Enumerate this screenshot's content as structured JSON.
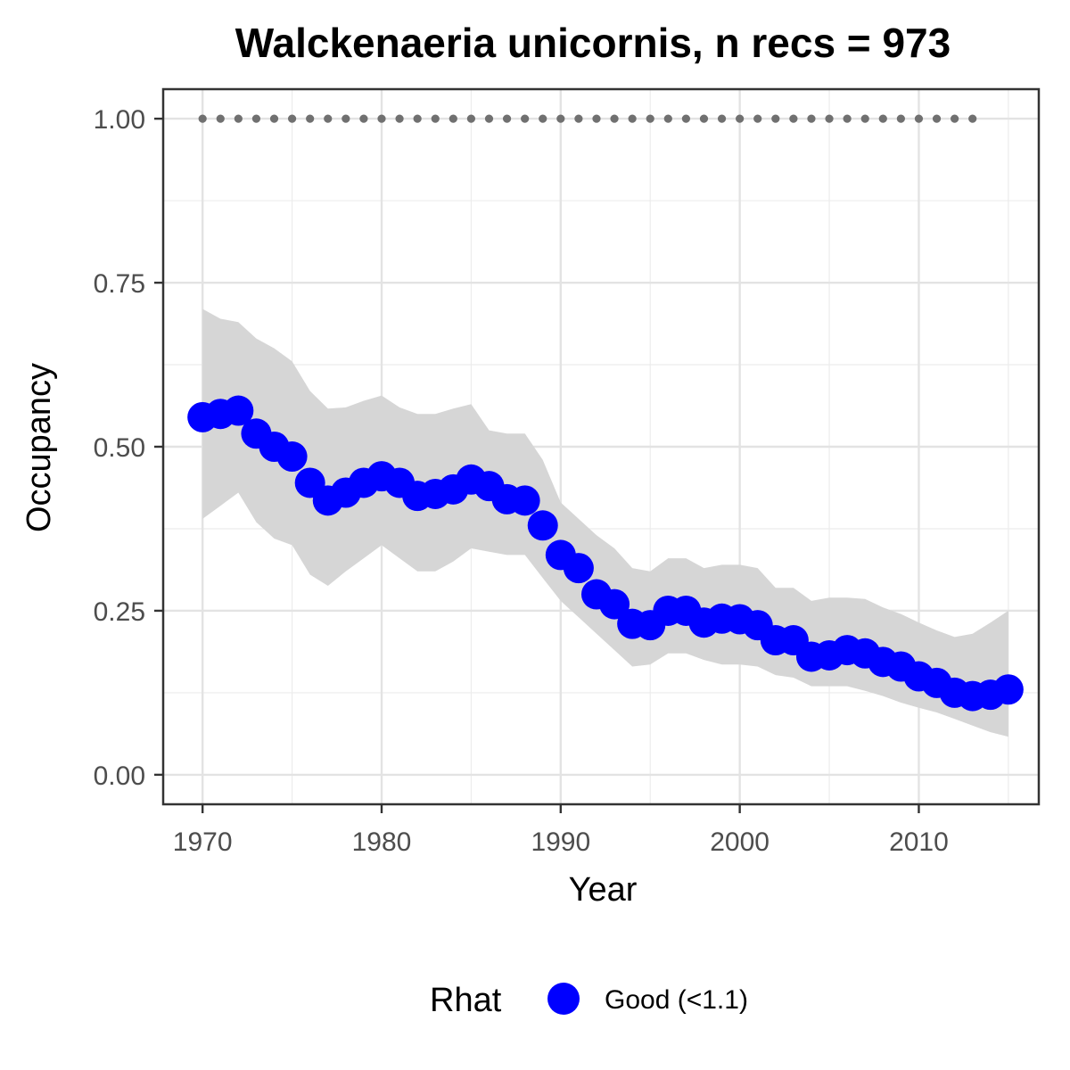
{
  "chart_data": {
    "type": "line",
    "title": "Walckenaeria unicornis, n recs = 973",
    "xlabel": "Year",
    "ylabel": "Occupancy",
    "xlim": [
      1967.8,
      2016.7
    ],
    "ylim": [
      -0.045,
      1.045
    ],
    "x_ticks": [
      1970,
      1980,
      1990,
      2000,
      2010
    ],
    "x_tick_labels": [
      "1970",
      "1980",
      "1990",
      "2000",
      "2010"
    ],
    "y_ticks": [
      0,
      0.25,
      0.5,
      0.75,
      1.0
    ],
    "y_tick_labels": [
      "0.00",
      "0.25",
      "0.50",
      "0.75",
      "1.00"
    ],
    "grid": true,
    "x": [
      1970,
      1971,
      1972,
      1973,
      1974,
      1975,
      1976,
      1977,
      1978,
      1979,
      1980,
      1981,
      1982,
      1983,
      1984,
      1985,
      1986,
      1987,
      1988,
      1989,
      1990,
      1991,
      1992,
      1993,
      1994,
      1995,
      1996,
      1997,
      1998,
      1999,
      2000,
      2001,
      2002,
      2003,
      2004,
      2005,
      2006,
      2007,
      2008,
      2009,
      2010,
      2011,
      2012,
      2013,
      2014,
      2015
    ],
    "series": [
      {
        "name": "Good (<1.1)",
        "color": "#0000ff",
        "values": [
          0.545,
          0.55,
          0.555,
          0.52,
          0.5,
          0.485,
          0.445,
          0.418,
          0.43,
          0.445,
          0.455,
          0.445,
          0.425,
          0.428,
          0.435,
          0.45,
          0.44,
          0.42,
          0.418,
          0.38,
          0.335,
          0.315,
          0.275,
          0.26,
          0.23,
          0.228,
          0.25,
          0.25,
          0.232,
          0.238,
          0.237,
          0.228,
          0.205,
          0.205,
          0.18,
          0.182,
          0.19,
          0.185,
          0.172,
          0.165,
          0.15,
          0.14,
          0.125,
          0.12,
          0.122,
          0.13
        ]
      }
    ],
    "ribbon": {
      "color": "#d6d6d6",
      "lower": [
        0.39,
        0.41,
        0.43,
        0.385,
        0.36,
        0.35,
        0.305,
        0.288,
        0.31,
        0.33,
        0.35,
        0.33,
        0.31,
        0.31,
        0.325,
        0.345,
        0.34,
        0.335,
        0.335,
        0.3,
        0.265,
        0.24,
        0.215,
        0.19,
        0.165,
        0.168,
        0.185,
        0.185,
        0.175,
        0.168,
        0.168,
        0.165,
        0.152,
        0.148,
        0.135,
        0.135,
        0.135,
        0.128,
        0.12,
        0.11,
        0.102,
        0.095,
        0.085,
        0.075,
        0.065,
        0.058
      ],
      "upper": [
        0.71,
        0.695,
        0.69,
        0.665,
        0.65,
        0.63,
        0.585,
        0.558,
        0.56,
        0.57,
        0.578,
        0.56,
        0.55,
        0.55,
        0.558,
        0.565,
        0.525,
        0.52,
        0.52,
        0.48,
        0.415,
        0.39,
        0.365,
        0.345,
        0.315,
        0.31,
        0.33,
        0.33,
        0.315,
        0.32,
        0.32,
        0.315,
        0.285,
        0.285,
        0.265,
        0.27,
        0.27,
        0.268,
        0.255,
        0.245,
        0.232,
        0.22,
        0.21,
        0.215,
        0.232,
        0.25
      ]
    },
    "reference": {
      "color": "#707070",
      "value": 1.0,
      "x": [
        1970,
        1971,
        1972,
        1973,
        1974,
        1975,
        1976,
        1977,
        1978,
        1979,
        1980,
        1981,
        1982,
        1983,
        1984,
        1985,
        1986,
        1987,
        1988,
        1989,
        1990,
        1991,
        1992,
        1993,
        1994,
        1995,
        1996,
        1997,
        1998,
        1999,
        2000,
        2001,
        2002,
        2003,
        2004,
        2005,
        2006,
        2007,
        2008,
        2009,
        2010,
        2011,
        2012,
        2013
      ]
    },
    "legend": {
      "title": "Rhat",
      "position": "bottom",
      "entries": [
        {
          "label": "Good (<1.1)",
          "color": "#0000ff"
        }
      ]
    }
  }
}
